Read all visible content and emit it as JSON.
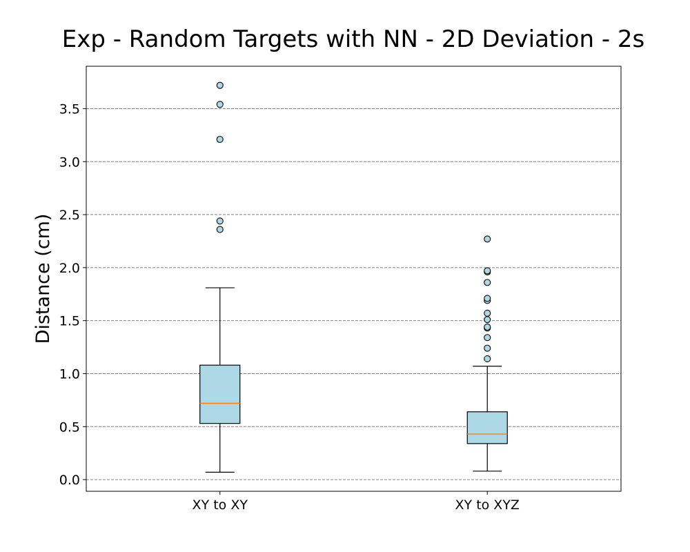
{
  "chart_data": {
    "type": "boxplot",
    "title": "Exp - Random Targets with NN - 2D Deviation - 2s",
    "xlabel": "",
    "ylabel": "Distance (cm)",
    "categories": [
      "XY to XY",
      "XY to XYZ"
    ],
    "ylim": [
      -0.11,
      3.9
    ],
    "yticks": [
      "0.0",
      "0.5",
      "1.0",
      "1.5",
      "2.0",
      "2.5",
      "3.0",
      "3.5"
    ],
    "grid": "horizontal dashed",
    "colors": {
      "box_fill": "#add8e6",
      "median": "#ff7f0e",
      "grid": "#808080",
      "outline": "#000000"
    },
    "boxes": [
      {
        "category": "XY to XY",
        "whisker_low": 0.07,
        "q1": 0.53,
        "median": 0.72,
        "q3": 1.08,
        "whisker_high": 1.81,
        "outliers": [
          2.36,
          2.44,
          3.21,
          3.54,
          3.72
        ]
      },
      {
        "category": "XY to XYZ",
        "whisker_low": 0.08,
        "q1": 0.34,
        "median": 0.43,
        "q3": 0.64,
        "whisker_high": 1.07,
        "outliers": [
          1.14,
          1.24,
          1.34,
          1.43,
          1.44,
          1.51,
          1.57,
          1.69,
          1.71,
          1.86,
          1.96,
          1.97,
          2.27
        ]
      }
    ]
  }
}
